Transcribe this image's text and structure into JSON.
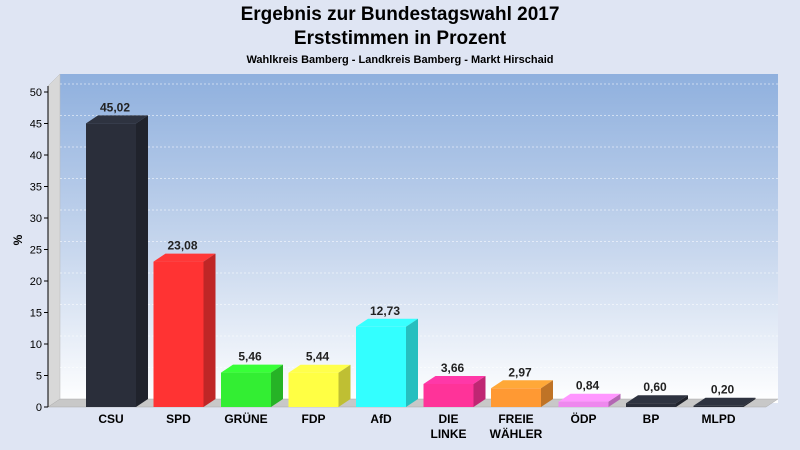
{
  "chart_data": {
    "type": "bar",
    "title": "Ergebnis zur Bundestagswahl 2017",
    "subtitle": "Erststimmen in Prozent",
    "caption": "Wahlkreis Bamberg - Landkreis Bamberg - Markt Hirschaid",
    "ylabel": "%",
    "xlabel": "",
    "ylim": [
      0,
      50
    ],
    "yticks": [
      0,
      5,
      10,
      15,
      20,
      25,
      30,
      35,
      40,
      45,
      50
    ],
    "grid": true,
    "categories": [
      "CSU",
      "SPD",
      "GRÜNE",
      "FDP",
      "AfD",
      "DIE LINKE",
      "FREIE WÄHLER",
      "ÖDP",
      "BP",
      "MLPD"
    ],
    "value_labels": [
      "45,02",
      "23,08",
      "5,46",
      "5,44",
      "12,73",
      "3,66",
      "2,97",
      "0,84",
      "0,60",
      "0,20"
    ],
    "values": [
      45.02,
      23.08,
      5.46,
      5.44,
      12.73,
      3.66,
      2.97,
      0.84,
      0.6,
      0.2
    ],
    "colors": [
      "#2a2e3a",
      "#ff3333",
      "#33ee33",
      "#ffff44",
      "#33ffff",
      "#ff3399",
      "#ff9933",
      "#ee88ee",
      "#2a2e3a",
      "#2a2e3a"
    ]
  }
}
